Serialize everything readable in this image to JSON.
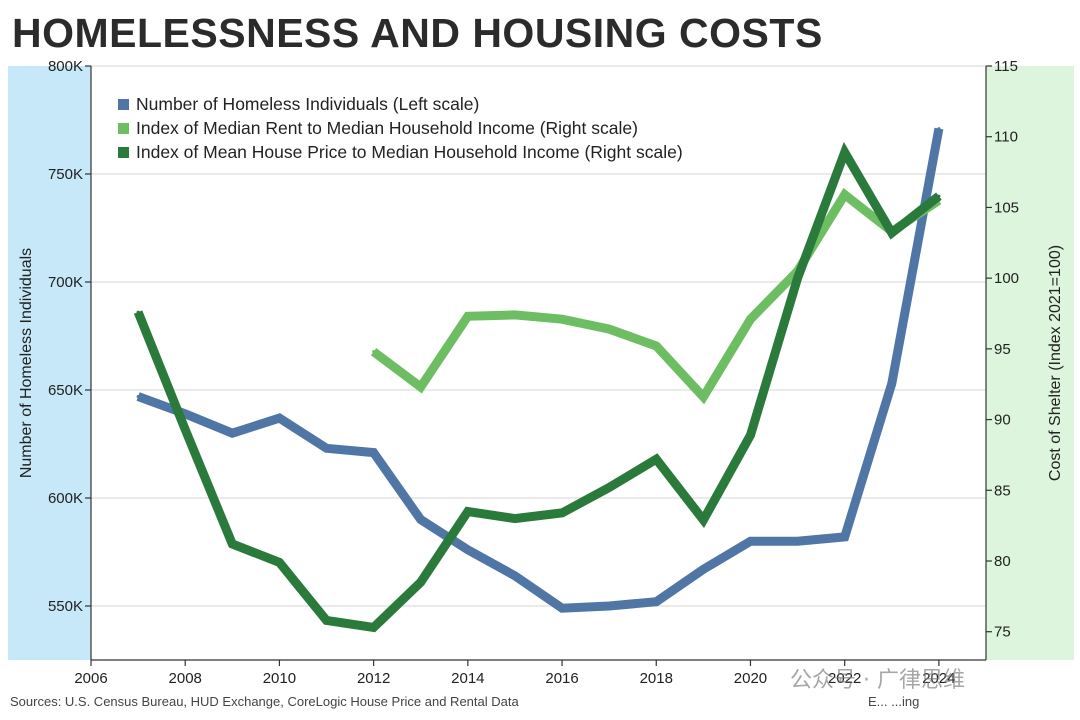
{
  "title": "HOMELESSNESS AND HOUSING COSTS",
  "source": "Sources: U.S. Census Bureau, HUD Exchange, CoreLogic House Price and Rental Data",
  "logo_text": "E... ...ing",
  "watermark": "公众号 · 广律思维",
  "colors": {
    "left_band": "#c6e8f8",
    "right_band": "#ddf5dc",
    "homeless": "#4f76a4",
    "rent": "#6dbd62",
    "house": "#2a7a3c",
    "grid": "#d6d6d6"
  },
  "chart_data": {
    "type": "line",
    "title": "HOMELESSNESS AND HOUSING COSTS",
    "xlabel": "",
    "ylabel": "Number of Homeless Individuals",
    "y2label": "Cost of Shelter (Index 2021=100)",
    "xlim": [
      2006,
      2025
    ],
    "ylim": [
      525000,
      800000
    ],
    "y2lim": [
      73,
      115
    ],
    "x_ticks": [
      "2006",
      "2008",
      "2010",
      "2012",
      "2014",
      "2016",
      "2018",
      "2020",
      "2022",
      "2024"
    ],
    "y_ticks": [
      550000,
      600000,
      650000,
      700000,
      750000,
      800000
    ],
    "y_tick_labels": [
      "550K",
      "600K",
      "650K",
      "700K",
      "750K",
      "800K"
    ],
    "y2_ticks": [
      75,
      80,
      85,
      90,
      95,
      100,
      105,
      110,
      115
    ],
    "y2_tick_labels": [
      "75",
      "80",
      "85",
      "90",
      "95",
      "100",
      "105",
      "110",
      "115"
    ],
    "grid": true,
    "legend_position": "top-left",
    "series": [
      {
        "name": "Number of Homeless Individuals (Left scale)",
        "axis": "left",
        "x": [
          2007,
          2008,
          2009,
          2010,
          2011,
          2012,
          2013,
          2014,
          2015,
          2016,
          2017,
          2018,
          2019,
          2020,
          2021,
          2022,
          2023,
          2024
        ],
        "values": [
          647000,
          639000,
          630000,
          637000,
          623000,
          621000,
          590000,
          576000,
          564000,
          549000,
          550000,
          552000,
          567000,
          580000,
          580000,
          582000,
          653000,
          771000
        ]
      },
      {
        "name": "Index of Median Rent to Median Household Income (Right scale)",
        "axis": "right",
        "x": [
          2012,
          2013,
          2014,
          2015,
          2016,
          2017,
          2018,
          2019,
          2020,
          2021,
          2022,
          2023,
          2024
        ],
        "values": [
          94.8,
          92.3,
          97.3,
          97.4,
          97.1,
          96.4,
          95.2,
          91.6,
          97.1,
          100.5,
          105.9,
          103.3,
          105.5
        ]
      },
      {
        "name": "Index of Mean House Price to Median Household Income (Right scale)",
        "axis": "right",
        "x": [
          2007,
          2008,
          2009,
          2010,
          2011,
          2012,
          2013,
          2014,
          2015,
          2016,
          2017,
          2018,
          2019,
          2020,
          2021,
          2022,
          2023,
          2024
        ],
        "values": [
          97.6,
          89.3,
          81.2,
          79.9,
          75.8,
          75.3,
          78.5,
          83.5,
          83.0,
          83.4,
          85.2,
          87.2,
          82.9,
          88.9,
          100.0,
          108.9,
          103.2,
          105.8
        ]
      }
    ]
  }
}
